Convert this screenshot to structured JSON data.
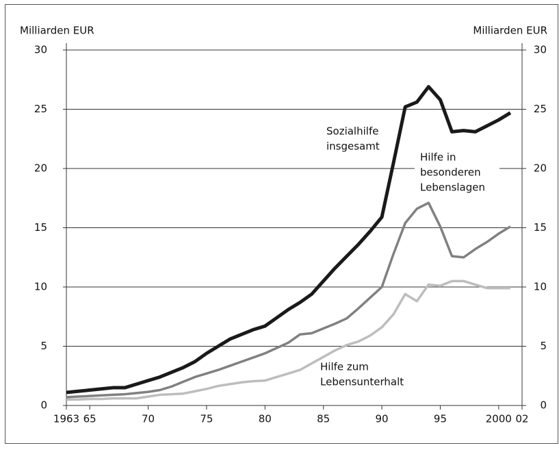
{
  "chart_data": {
    "type": "line",
    "ylabel": "Milliarden EUR",
    "y2label": "Milliarden EUR",
    "x": [
      1963,
      1964,
      1965,
      1966,
      1967,
      1968,
      1969,
      1970,
      1971,
      1972,
      1973,
      1974,
      1975,
      1976,
      1977,
      1978,
      1979,
      1980,
      1981,
      1982,
      1983,
      1984,
      1985,
      1986,
      1987,
      1988,
      1989,
      1990,
      1991,
      1992,
      1993,
      1994,
      1995,
      1996,
      1997,
      1998,
      1999,
      2000,
      2001
    ],
    "series": [
      {
        "name": "Sozialhilfe insgesamt",
        "color": "#1a1a1a",
        "values": [
          1.1,
          1.2,
          1.3,
          1.4,
          1.5,
          1.5,
          1.8,
          2.1,
          2.4,
          2.8,
          3.2,
          3.7,
          4.4,
          5.0,
          5.6,
          6.0,
          6.4,
          6.7,
          7.4,
          8.1,
          8.7,
          9.4,
          10.5,
          11.6,
          12.6,
          13.6,
          14.7,
          15.9,
          20.5,
          25.2,
          25.6,
          26.9,
          25.8,
          23.1,
          23.2,
          23.1,
          23.6,
          24.1,
          24.7
        ]
      },
      {
        "name": "Hilfe in besonderen Lebenslagen",
        "color": "#808080",
        "values": [
          0.7,
          0.75,
          0.8,
          0.85,
          0.9,
          0.95,
          1.05,
          1.15,
          1.3,
          1.6,
          2.0,
          2.4,
          2.7,
          3.0,
          3.35,
          3.7,
          4.05,
          4.4,
          4.85,
          5.3,
          6.0,
          6.1,
          6.5,
          6.9,
          7.35,
          8.2,
          9.1,
          10.0,
          12.8,
          15.4,
          16.6,
          17.1,
          15.1,
          12.6,
          12.5,
          13.2,
          13.8,
          14.5,
          15.1
        ]
      },
      {
        "name": "Hilfe zum Lebensunterhalt",
        "color": "#bdbdbd",
        "values": [
          0.5,
          0.5,
          0.55,
          0.55,
          0.6,
          0.6,
          0.6,
          0.75,
          0.9,
          0.95,
          1.0,
          1.2,
          1.4,
          1.65,
          1.8,
          1.95,
          2.05,
          2.1,
          2.4,
          2.7,
          3.0,
          3.55,
          4.1,
          4.65,
          5.1,
          5.4,
          5.9,
          6.6,
          7.7,
          9.4,
          8.8,
          10.2,
          10.1,
          10.5,
          10.5,
          10.2,
          9.9,
          9.9,
          9.9
        ]
      }
    ],
    "annotations": [
      {
        "lines": [
          "Sozialhilfe",
          "insgesamt"
        ]
      },
      {
        "lines": [
          "Hilfe in",
          "besonderen",
          "Lebenslagen"
        ]
      },
      {
        "lines": [
          "Hilfe zum",
          "Lebensunterhalt"
        ]
      }
    ],
    "xlim": [
      1963,
      2002
    ],
    "xticks": [
      1963,
      {
        "value": 1965,
        "label": "65"
      },
      {
        "value": 1970,
        "label": "70"
      },
      {
        "value": 1975,
        "label": "75"
      },
      {
        "value": 1980,
        "label": "80"
      },
      {
        "value": 1985,
        "label": "85"
      },
      {
        "value": 1990,
        "label": "90"
      },
      {
        "value": 1995,
        "label": "95"
      },
      2000,
      {
        "value": 2002,
        "label": "02"
      }
    ],
    "ylim": [
      0,
      30
    ],
    "yticks": [
      0,
      5,
      10,
      15,
      20,
      25,
      30
    ],
    "y2lim": [
      0,
      30
    ],
    "y2ticks": [
      0,
      5,
      10,
      15,
      20,
      25,
      30
    ],
    "grid": true
  }
}
